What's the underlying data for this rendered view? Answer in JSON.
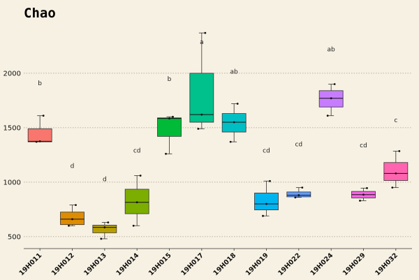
{
  "chart_data": {
    "type": "boxplot",
    "title": "Chao",
    "xlabel": "",
    "ylabel": "",
    "ylim": [
      390,
      2480
    ],
    "yticks": [
      500,
      1000,
      1500,
      2000
    ],
    "grid": true,
    "legend": "none",
    "categories": [
      "19H011",
      "19H012",
      "19H013",
      "19H014",
      "19H015",
      "19H017",
      "19H018",
      "19H019",
      "19H022",
      "19H024",
      "19H029",
      "19H032"
    ],
    "colors": [
      "#f8766d",
      "#de8c00",
      "#b79f00",
      "#7cae00",
      "#00ba38",
      "#00c08b",
      "#00bfc4",
      "#00b4f0",
      "#619cff",
      "#c77cff",
      "#f564e3",
      "#ff64b0"
    ],
    "boxes": [
      {
        "min": 1370,
        "q1": 1370,
        "median": 1375,
        "q3": 1490,
        "max": 1610,
        "points": [
          1370,
          1375,
          1610
        ],
        "label": "b",
        "label_y": 1890
      },
      {
        "min": 600,
        "q1": 610,
        "median": 660,
        "q3": 725,
        "max": 790,
        "points": [
          600,
          660,
          790
        ],
        "label": "d",
        "label_y": 1130
      },
      {
        "min": 480,
        "q1": 535,
        "median": 585,
        "q3": 605,
        "max": 630,
        "points": [
          480,
          585,
          630
        ],
        "label": "d",
        "label_y": 1010
      },
      {
        "min": 600,
        "q1": 710,
        "median": 815,
        "q3": 935,
        "max": 1060,
        "points": [
          600,
          815,
          1060
        ],
        "label": "cd",
        "label_y": 1270
      },
      {
        "min": 1260,
        "q1": 1420,
        "median": 1585,
        "q3": 1590,
        "max": 1600,
        "points": [
          1260,
          1585,
          1600
        ],
        "label": "b",
        "label_y": 1930
      },
      {
        "min": 1490,
        "q1": 1550,
        "median": 1620,
        "q3": 2000,
        "max": 2370,
        "points": [
          1490,
          1620,
          2370
        ],
        "label": "a",
        "label_y": 2270
      },
      {
        "min": 1370,
        "q1": 1460,
        "median": 1550,
        "q3": 1630,
        "max": 1720,
        "points": [
          1370,
          1550,
          1720
        ],
        "label": "ab",
        "label_y": 1995
      },
      {
        "min": 690,
        "q1": 745,
        "median": 800,
        "q3": 900,
        "max": 1010,
        "points": [
          690,
          800,
          1010
        ],
        "label": "cd",
        "label_y": 1270
      },
      {
        "min": 860,
        "q1": 865,
        "median": 880,
        "q3": 910,
        "max": 950,
        "points": [
          860,
          880,
          950
        ],
        "label": "cd",
        "label_y": 1330
      },
      {
        "min": 1610,
        "q1": 1690,
        "median": 1770,
        "q3": 1840,
        "max": 1900,
        "points": [
          1610,
          1770,
          1900
        ],
        "label": "ab",
        "label_y": 2200
      },
      {
        "min": 830,
        "q1": 855,
        "median": 885,
        "q3": 915,
        "max": 945,
        "points": [
          830,
          885,
          945
        ],
        "label": "cd",
        "label_y": 1320
      },
      {
        "min": 950,
        "q1": 1015,
        "median": 1080,
        "q3": 1180,
        "max": 1285,
        "points": [
          950,
          1080,
          1285
        ],
        "label": "c",
        "label_y": 1550
      }
    ]
  }
}
